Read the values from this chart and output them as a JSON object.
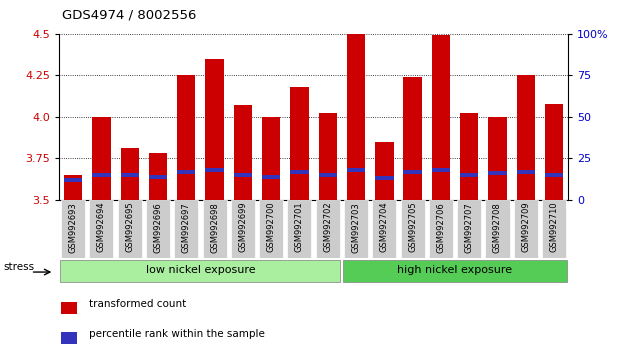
{
  "title": "GDS4974 / 8002556",
  "samples": [
    "GSM992693",
    "GSM992694",
    "GSM992695",
    "GSM992696",
    "GSM992697",
    "GSM992698",
    "GSM992699",
    "GSM992700",
    "GSM992701",
    "GSM992702",
    "GSM992703",
    "GSM992704",
    "GSM992705",
    "GSM992706",
    "GSM992707",
    "GSM992708",
    "GSM992709",
    "GSM992710"
  ],
  "red_values": [
    3.65,
    4.0,
    3.81,
    3.78,
    4.25,
    4.35,
    4.07,
    4.0,
    4.18,
    4.02,
    4.5,
    3.85,
    4.24,
    4.49,
    4.02,
    4.0,
    4.25,
    4.08
  ],
  "blue_values": [
    3.62,
    3.65,
    3.65,
    3.64,
    3.67,
    3.68,
    3.65,
    3.64,
    3.67,
    3.65,
    3.68,
    3.63,
    3.67,
    3.68,
    3.65,
    3.66,
    3.67,
    3.65
  ],
  "ylim_left": [
    3.5,
    4.5
  ],
  "ylim_right": [
    0,
    100
  ],
  "yticks_left": [
    3.5,
    3.75,
    4.0,
    4.25,
    4.5
  ],
  "yticks_right": [
    0,
    25,
    50,
    75,
    100
  ],
  "ytick_labels_right": [
    "0",
    "25",
    "50",
    "75",
    "100%"
  ],
  "bar_width": 0.65,
  "bar_color_red": "#cc0000",
  "bar_color_blue": "#3333bb",
  "group1_label": "low nickel exposure",
  "group2_label": "high nickel exposure",
  "group1_color": "#aaeea0",
  "group2_color": "#55cc55",
  "group1_count": 10,
  "group2_count": 8,
  "stress_label": "stress",
  "legend_red": "transformed count",
  "legend_blue": "percentile rank within the sample",
  "axis_left_color": "#cc0000",
  "axis_right_color": "#0000cc",
  "xtick_bg_color": "#cccccc"
}
